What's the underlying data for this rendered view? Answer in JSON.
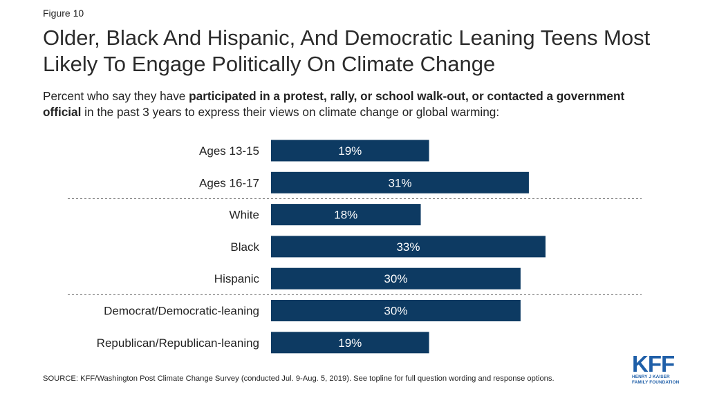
{
  "figure_label": "Figure 10",
  "title": "Older, Black And Hispanic, And Democratic Leaning Teens Most Likely To Engage Politically On Climate Change",
  "subtitle": {
    "prefix": "Percent who say they have ",
    "bold": "participated in a protest, rally, or school walk-out, or contacted a government official",
    "suffix": " in the past 3 years to express their views on climate change or global warming:"
  },
  "chart_data": {
    "type": "bar",
    "orientation": "horizontal",
    "categories": [
      "Ages 13-15",
      "Ages 16-17",
      "White",
      "Black",
      "Hispanic",
      "Democrat/Democratic-leaning",
      "Republican/Republican-leaning"
    ],
    "values": [
      19,
      31,
      18,
      33,
      30,
      30,
      19
    ],
    "value_labels": [
      "19%",
      "31%",
      "18%",
      "33%",
      "30%",
      "30%",
      "19%"
    ],
    "group_separators_after": [
      1,
      4
    ],
    "xlim": [
      0,
      35
    ],
    "bar_color": "#0d3a62",
    "label_color": "#ffffff",
    "grid": false
  },
  "source": "SOURCE: KFF/Washington Post Climate Change Survey (conducted Jul. 9-Aug. 5, 2019). See topline for full question wording and response options.",
  "logo": {
    "main": "KFF",
    "sub_line1": "HENRY J KAISER",
    "sub_line2": "FAMILY FOUNDATION"
  }
}
